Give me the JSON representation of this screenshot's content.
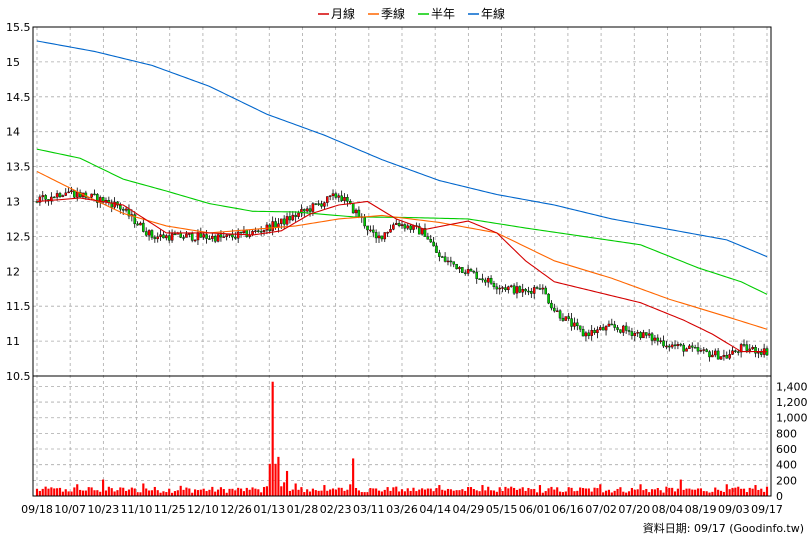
{
  "chart_data": {
    "type": "candlestick+volume",
    "legend": [
      {
        "label": "月線",
        "color": "#d40000"
      },
      {
        "label": "季線",
        "color": "#ff6600"
      },
      {
        "label": "半年",
        "color": "#00cc00"
      },
      {
        "label": "年線",
        "color": "#0066cc"
      }
    ],
    "price_axis": {
      "min": 10.5,
      "max": 15.5,
      "ticks": [
        "15.5",
        "15",
        "14.5",
        "14",
        "13.5",
        "13",
        "12.5",
        "12",
        "11.5",
        "11",
        "10.5"
      ]
    },
    "volume_axis": {
      "min": 0,
      "max": 1400,
      "ticks": [
        "0",
        "200",
        "400",
        "600",
        "800",
        "1,000",
        "1,200",
        "1,400"
      ]
    },
    "x_labels": [
      "09/18",
      "10/07",
      "10/23",
      "11/10",
      "11/25",
      "12/10",
      "12/26",
      "01/13",
      "01/28",
      "02/23",
      "03/11",
      "03/26",
      "04/14",
      "04/29",
      "05/15",
      "06/01",
      "06/16",
      "07/02",
      "07/20",
      "08/04",
      "08/19",
      "09/03",
      "09/17"
    ],
    "source_note": "資料日期: 09/17  (Goodinfo.tw)",
    "colors": {
      "up": "#ff0000",
      "down": "#00cc00",
      "volume": "#ff0000",
      "grid": "#aaaaaa"
    },
    "ma_year": [
      [
        0,
        15.3
      ],
      [
        20,
        15.15
      ],
      [
        40,
        14.95
      ],
      [
        60,
        14.65
      ],
      [
        80,
        14.25
      ],
      [
        100,
        13.95
      ],
      [
        120,
        13.6
      ],
      [
        140,
        13.3
      ],
      [
        160,
        13.1
      ],
      [
        180,
        12.95
      ],
      [
        200,
        12.75
      ],
      [
        220,
        12.6
      ],
      [
        240,
        12.45
      ],
      [
        254,
        12.21
      ]
    ],
    "ma_half": [
      [
        0,
        13.75
      ],
      [
        15,
        13.62
      ],
      [
        30,
        13.32
      ],
      [
        45,
        13.15
      ],
      [
        60,
        12.97
      ],
      [
        75,
        12.86
      ],
      [
        90,
        12.85
      ],
      [
        110,
        12.78
      ],
      [
        130,
        12.77
      ],
      [
        150,
        12.75
      ],
      [
        170,
        12.62
      ],
      [
        190,
        12.5
      ],
      [
        210,
        12.38
      ],
      [
        230,
        12.05
      ],
      [
        245,
        11.85
      ],
      [
        254,
        11.67
      ]
    ],
    "ma_quarter": [
      [
        0,
        13.43
      ],
      [
        15,
        13.12
      ],
      [
        30,
        12.83
      ],
      [
        45,
        12.65
      ],
      [
        60,
        12.55
      ],
      [
        75,
        12.6
      ],
      [
        90,
        12.65
      ],
      [
        105,
        12.75
      ],
      [
        120,
        12.8
      ],
      [
        140,
        12.7
      ],
      [
        160,
        12.55
      ],
      [
        180,
        12.15
      ],
      [
        200,
        11.9
      ],
      [
        220,
        11.6
      ],
      [
        240,
        11.35
      ],
      [
        254,
        11.17
      ]
    ],
    "ma_month": [
      [
        0,
        13.0
      ],
      [
        15,
        13.05
      ],
      [
        30,
        12.95
      ],
      [
        45,
        12.55
      ],
      [
        60,
        12.55
      ],
      [
        75,
        12.52
      ],
      [
        85,
        12.58
      ],
      [
        95,
        12.82
      ],
      [
        105,
        12.95
      ],
      [
        115,
        13.0
      ],
      [
        125,
        12.75
      ],
      [
        135,
        12.6
      ],
      [
        150,
        12.72
      ],
      [
        160,
        12.55
      ],
      [
        170,
        12.15
      ],
      [
        180,
        11.85
      ],
      [
        195,
        11.7
      ],
      [
        210,
        11.55
      ],
      [
        225,
        11.3
      ],
      [
        235,
        11.1
      ],
      [
        245,
        10.85
      ],
      [
        254,
        10.85
      ]
    ],
    "price_path": [
      [
        0,
        13.0
      ],
      [
        10,
        13.15
      ],
      [
        20,
        13.05
      ],
      [
        28,
        12.95
      ],
      [
        40,
        12.5
      ],
      [
        55,
        12.5
      ],
      [
        65,
        12.48
      ],
      [
        75,
        12.55
      ],
      [
        85,
        12.7
      ],
      [
        95,
        12.9
      ],
      [
        105,
        13.1
      ],
      [
        112,
        12.8
      ],
      [
        118,
        12.45
      ],
      [
        125,
        12.7
      ],
      [
        135,
        12.55
      ],
      [
        140,
        12.2
      ],
      [
        150,
        12.0
      ],
      [
        160,
        11.8
      ],
      [
        170,
        11.7
      ],
      [
        175,
        11.8
      ],
      [
        180,
        11.45
      ],
      [
        190,
        11.1
      ],
      [
        200,
        11.2
      ],
      [
        210,
        11.1
      ],
      [
        220,
        10.95
      ],
      [
        230,
        10.85
      ],
      [
        240,
        10.78
      ],
      [
        245,
        10.9
      ],
      [
        254,
        10.85
      ]
    ],
    "volume_spikes": [
      [
        5,
        70
      ],
      [
        14,
        150
      ],
      [
        23,
        210
      ],
      [
        37,
        160
      ],
      [
        50,
        130
      ],
      [
        75,
        110
      ],
      [
        82,
        1460
      ],
      [
        84,
        500
      ],
      [
        87,
        320
      ],
      [
        90,
        160
      ],
      [
        100,
        140
      ],
      [
        110,
        480
      ],
      [
        125,
        120
      ],
      [
        140,
        140
      ],
      [
        155,
        140
      ],
      [
        175,
        140
      ],
      [
        196,
        150
      ],
      [
        210,
        150
      ],
      [
        224,
        210
      ],
      [
        240,
        150
      ],
      [
        250,
        140
      ]
    ]
  }
}
